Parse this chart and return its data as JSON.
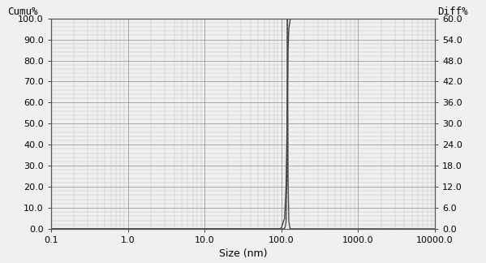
{
  "title": "",
  "xlabel": "Size (nm)",
  "ylabel_left": "Cumu%",
  "ylabel_right": "Diff%",
  "xlim": [
    0.1,
    10000.0
  ],
  "ylim_left": [
    0.0,
    100.0
  ],
  "ylim_right": [
    0.0,
    60.0
  ],
  "yticks_left": [
    0.0,
    10.0,
    20.0,
    30.0,
    40.0,
    50.0,
    60.0,
    70.0,
    80.0,
    90.0,
    100.0
  ],
  "yticks_right": [
    0.0,
    6.0,
    12.0,
    18.0,
    24.0,
    30.0,
    36.0,
    42.0,
    48.0,
    54.0,
    60.0
  ],
  "line_color": "#444444",
  "background_color": "#f0f0f0",
  "grid_color_major": "#888888",
  "grid_color_minor": "#bbbbbb",
  "cumulative_x": [
    0.1,
    80.0,
    90.0,
    95.0,
    100.0,
    110.0,
    115.0,
    118.0,
    120.0,
    122.0,
    125.0,
    130.0,
    140.0,
    160.0,
    200.0,
    10000.0
  ],
  "cumulative_y": [
    0.0,
    0.0,
    0.0,
    0.0,
    0.5,
    5.0,
    20.0,
    45.0,
    65.0,
    85.0,
    95.0,
    99.5,
    100.0,
    100.0,
    100.0,
    100.0
  ],
  "diff_x": [
    0.1,
    80.0,
    90.0,
    100.0,
    108.0,
    112.0,
    115.0,
    118.0,
    119.0,
    120.0,
    121.0,
    122.0,
    125.0,
    130.0,
    140.0,
    200.0,
    10000.0
  ],
  "diff_y": [
    0.0,
    0.0,
    0.0,
    0.0,
    0.0,
    0.5,
    2.0,
    15.0,
    45.0,
    60.0,
    45.0,
    15.0,
    2.0,
    0.0,
    0.0,
    0.0,
    0.0
  ],
  "xtick_labels": [
    "0.1",
    "1.0",
    "10.0",
    "100.0",
    "1000.0",
    "10000.0"
  ],
  "xtick_positions": [
    0.1,
    1.0,
    10.0,
    100.0,
    1000.0,
    10000.0
  ],
  "label_fontsize": 9,
  "tick_fontsize": 8
}
